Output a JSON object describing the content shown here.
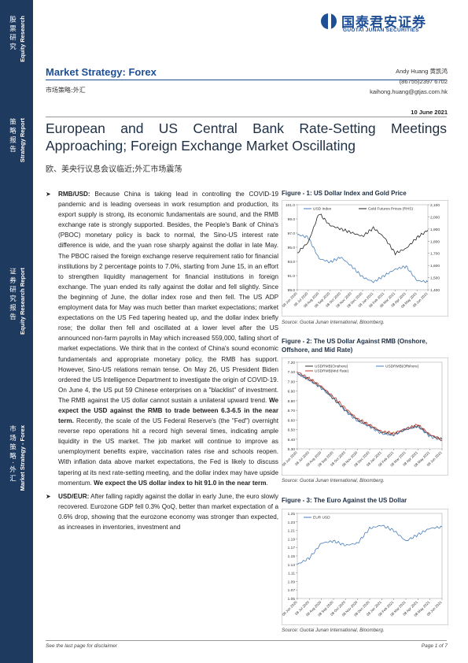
{
  "sidebar": {
    "blocks": [
      {
        "cjk": "股票研究",
        "en": "Equity Research"
      },
      {
        "cjk": "策略报告",
        "en": "Strategy Report"
      },
      {
        "cjk": "证券研究报告",
        "en": "Equity Research Report"
      },
      {
        "cjk": "市场策略·外汇",
        "en": "Market Strategy - Forex"
      }
    ]
  },
  "logo": {
    "cn": "国泰君安证券",
    "en": "GUOTAI JUNAN SECURITIES"
  },
  "header": {
    "title": "Market Strategy: Forex",
    "subtitle_cn": "市场策略:外汇",
    "author": "Andy Huang 黄凯鸿",
    "phone": "(86755)2397 6702",
    "email": "kaihong.huang@gtjas.com.hk",
    "date": "10 June 2021"
  },
  "report": {
    "title": "European and US Central Bank Rate-Setting Meetings Approaching; Foreign Exchange Market Oscillating",
    "title_cn": "欧、美央行议息会议临近;外汇市场震荡"
  },
  "body": {
    "p1_label": "RMB/USD:",
    "p1_text": " Because China is taking lead in controlling the COVID-19 pandemic and is leading overseas in work resumption and production, its export supply is strong, its economic fundamentals are sound, and the RMB exchange rate is strongly supported. Besides, the People's Bank of China's (PBOC) monetary policy is back to normal, the Sino-US interest rate difference is wide, and the yuan rose sharply against the dollar in late May. The PBOC raised the foreign exchange reserve requirement ratio for financial institutions by 2 percentage points to 7.0%, starting from June 15, in an effort to strengthen liquidity management for financial institutions in foreign exchange. The yuan ended its rally against the dollar and fell slightly. Since the beginning of June, the dollar index rose and then fell. The US ADP employment data for May was much better than market expectations; market expectations on the US Fed tapering heated up, and the dollar index briefly rose; the dollar then fell and oscillated at a lower level after the US announced non-farm payrolls in May which increased 559,000, falling short of market expectations. We think that in the context of China's sound economic fundamentals and appropriate monetary policy, the RMB has support. However, Sino-US relations remain tense. On May 26, US President Biden ordered the US Intelligence Department to investigate the origin of COVID-19. On June 4, the US put 59 Chinese enterprises on a \"blacklist\" of investment. The RMB against the US dollar cannot sustain a unilateral upward trend. ",
    "p1_bold1": "We expect the USD against the RMB to trade between 6.3-6.5 in the near term.",
    "p1_text2": " Recently, the scale of the US Federal Reserve's (the \"Fed\") overnight reverse repo operations hit a record high several times, indicating ample liquidity in the US market. The job market will continue to improve as unemployment benefits expire, vaccination rates rise and schools reopen. With inflation data above market expectations, the Fed is likely to discuss tapering at its next rate-setting meeting, and the dollar index may have upside momentum. ",
    "p1_bold2": "We expect the US dollar index to hit 91.0 in the near term",
    "p1_end": ".",
    "p2_label": "USD/EUR:",
    "p2_text": " After falling rapidly against the dollar in early June, the euro slowly recovered. Eurozone GDP fell 0.3% QoQ, better than market expectation of a 0.6% drop, showing that the eurozone economy was stronger than expected, as increases in inventories, investment and"
  },
  "figures": [
    {
      "title": "Figure - 1: US Dollar Index and Gold Price",
      "source": "Source: Guotai Junan International, Bloomberg."
    },
    {
      "title": "Figure - 2: The US Dollar Against RMB (Onshore, Offshore, and Mid Rate)",
      "source": "Source: Guotai Junan International, Bloomberg."
    },
    {
      "title": "Figure - 3: The Euro Against the US Dollar",
      "source": "Source: Guotai Junan International, Bloomberg."
    }
  ],
  "chart_data": [
    {
      "type": "line",
      "categories": [
        "08 Jun 2020",
        "08 Jul 2020",
        "08 Aug 2020",
        "08 Sep 2020",
        "08 Oct 2020",
        "08 Nov 2020",
        "08 Dec 2020",
        "08 Jan 2021",
        "08 Feb 2021",
        "08 Mar 2021",
        "08 Apr 2021",
        "08 May 2021",
        "08 Jun 2021"
      ],
      "series": [
        {
          "name": "USD Index",
          "axis": "left",
          "color": "#4a7ebb",
          "values": [
            96.8,
            96.4,
            93.4,
            92.9,
            93.6,
            92.3,
            90.8,
            90.1,
            91.0,
            91.9,
            92.3,
            90.3,
            90.1
          ]
        },
        {
          "name": "Gold Futures Prices (RHS)",
          "axis": "right",
          "color": "#222222",
          "values": [
            1705,
            1790,
            2030,
            1930,
            1900,
            1870,
            1840,
            1910,
            1830,
            1700,
            1740,
            1830,
            1890
          ]
        }
      ],
      "ylim": [
        89.0,
        101.0
      ],
      "yticks": [
        "101.0",
        "99.0",
        "97.0",
        "95.0",
        "93.0",
        "91.0",
        "89.0"
      ],
      "y2lim": [
        1400,
        2100
      ],
      "y2ticks": [
        "2,100",
        "2,000",
        "1,900",
        "1,800",
        "1,700",
        "1,600",
        "1,500",
        "1,400"
      ],
      "legend": "top"
    },
    {
      "type": "line",
      "categories": [
        "08 Jun 2020",
        "08 Jul 2020",
        "08 Aug 2020",
        "08 Sep 2020",
        "08 Oct 2020",
        "08 Nov 2020",
        "08 Dec 2020",
        "08 Jan 2021",
        "08 Feb 2021",
        "08 Mar 2021",
        "08 Apr 2021",
        "08 May 2021",
        "08 Jun 2021"
      ],
      "series": [
        {
          "name": "USDRMB(Onshore)",
          "color": "#333333",
          "values": [
            7.08,
            7.02,
            6.94,
            6.82,
            6.7,
            6.6,
            6.54,
            6.47,
            6.45,
            6.5,
            6.54,
            6.44,
            6.4
          ]
        },
        {
          "name": "USDRMB(Offshore)",
          "color": "#4a7ebb",
          "values": [
            7.09,
            7.01,
            6.93,
            6.83,
            6.69,
            6.59,
            6.53,
            6.46,
            6.44,
            6.51,
            6.53,
            6.43,
            6.39
          ]
        },
        {
          "name": "USDRMB(Mid Rate)",
          "color": "#c0392b",
          "values": [
            7.1,
            7.03,
            6.95,
            6.84,
            6.72,
            6.61,
            6.55,
            6.48,
            6.46,
            6.51,
            6.55,
            6.45,
            6.39
          ]
        }
      ],
      "ylim": [
        6.3,
        7.2
      ],
      "yticks": [
        "7.20",
        "7.10",
        "7.00",
        "6.90",
        "6.80",
        "6.70",
        "6.60",
        "6.50",
        "6.40",
        "6.30"
      ],
      "legend": "top"
    },
    {
      "type": "line",
      "categories": [
        "08 Jun 2020",
        "08 Jul 2020",
        "08 Aug 2020",
        "08 Sep 2020",
        "08 Oct 2020",
        "08 Nov 2020",
        "08 Dec 2020",
        "08 Jan 2021",
        "08 Feb 2021",
        "08 Mar 2021",
        "08 Apr 2021",
        "08 May 2021",
        "08 Jun 2021"
      ],
      "series": [
        {
          "name": "EUR USD",
          "color": "#4a7ebb",
          "values": [
            1.13,
            1.145,
            1.18,
            1.185,
            1.175,
            1.18,
            1.215,
            1.222,
            1.21,
            1.185,
            1.2,
            1.215,
            1.218
          ]
        }
      ],
      "ylim": [
        1.05,
        1.25
      ],
      "yticks": [
        "1.25",
        "1.23",
        "1.21",
        "1.19",
        "1.17",
        "1.15",
        "1.13",
        "1.11",
        "1.09",
        "1.07",
        "1.05"
      ],
      "legend": "top"
    }
  ],
  "footer": {
    "disclaimer": "See the last page for disclaimer",
    "page": "Page 1 of 7"
  }
}
